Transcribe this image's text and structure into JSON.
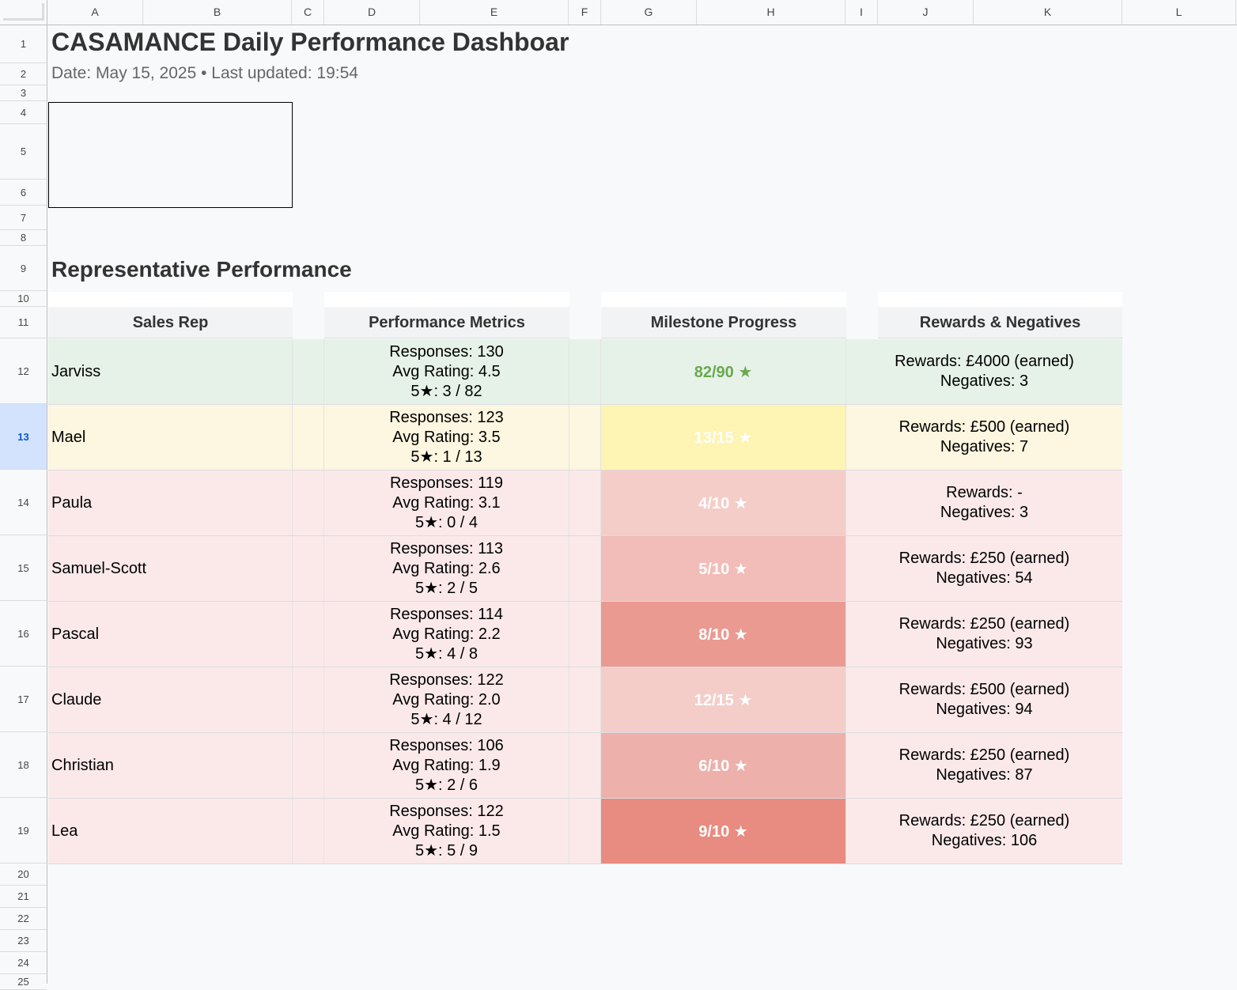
{
  "columns": [
    "A",
    "B",
    "C",
    "D",
    "E",
    "F",
    "G",
    "H",
    "I",
    "J",
    "K",
    "L"
  ],
  "rows": [
    "1",
    "2",
    "3",
    "4",
    "5",
    "6",
    "7",
    "8",
    "9",
    "10",
    "11",
    "12",
    "13",
    "14",
    "15",
    "16",
    "17",
    "18",
    "19",
    "20",
    "21",
    "22",
    "23",
    "24",
    "25"
  ],
  "selected_row": "13",
  "dashboard": {
    "title": "CASAMANCE Daily Performance Dashboar",
    "subtitle": "Date: May 15, 2025 • Last updated: 19:54",
    "section_title": "Representative Performance"
  },
  "table": {
    "headers": {
      "sales_rep": "Sales Rep",
      "metrics": "Performance Metrics",
      "milestone": "Milestone Progress",
      "rewards": "Rewards & Negatives"
    },
    "reps": [
      {
        "name": "Jarviss",
        "responses": "Responses: 130",
        "avg": "Avg Rating: 4.5",
        "five": "5★: 3 / 82",
        "milestone": "82/90 ★",
        "rewards": "Rewards: £4000 (earned)",
        "negatives": "Negatives: 3",
        "row_bg": "#e6f2e8",
        "mile_bg": "#e6f2e8",
        "mile_fg": "#6aa84f"
      },
      {
        "name": "Mael",
        "responses": "Responses: 123",
        "avg": "Avg Rating: 3.5",
        "five": "5★: 1 / 13",
        "milestone": "13/15 ★",
        "rewards": "Rewards: £500 (earned)",
        "negatives": "Negatives: 7",
        "row_bg": "#fdf6e0",
        "mile_bg": "#fef4b3",
        "mile_fg": "#ffffff"
      },
      {
        "name": "Paula",
        "responses": "Responses: 119",
        "avg": "Avg Rating: 3.1",
        "five": "5★: 0 / 4",
        "milestone": "4/10 ★",
        "rewards": "Rewards: -",
        "negatives": "Negatives: 3",
        "row_bg": "#fbe9ea",
        "mile_bg": "#f4cdc9",
        "mile_fg": "#ffffff"
      },
      {
        "name": "Samuel-Scott",
        "responses": "Responses: 113",
        "avg": "Avg Rating: 2.6",
        "five": "5★: 2 / 5",
        "milestone": "5/10 ★",
        "rewards": "Rewards: £250 (earned)",
        "negatives": "Negatives: 54",
        "row_bg": "#fbe9ea",
        "mile_bg": "#f2bcb8",
        "mile_fg": "#ffffff"
      },
      {
        "name": "Pascal",
        "responses": "Responses: 114",
        "avg": "Avg Rating: 2.2",
        "five": "5★: 4 / 8",
        "milestone": "8/10 ★",
        "rewards": "Rewards: £250 (earned)",
        "negatives": "Negatives: 93",
        "row_bg": "#fbe9ea",
        "mile_bg": "#ea9a91",
        "mile_fg": "#ffffff"
      },
      {
        "name": "Claude",
        "responses": "Responses: 122",
        "avg": "Avg Rating: 2.0",
        "five": "5★: 4 / 12",
        "milestone": "12/15 ★",
        "rewards": "Rewards: £500 (earned)",
        "negatives": "Negatives: 94",
        "row_bg": "#fbe9ea",
        "mile_bg": "#f4cdc9",
        "mile_fg": "#ffffff"
      },
      {
        "name": "Christian",
        "responses": "Responses: 106",
        "avg": "Avg Rating: 1.9",
        "five": "5★: 2 / 6",
        "milestone": "6/10 ★",
        "rewards": "Rewards: £250 (earned)",
        "negatives": "Negatives: 87",
        "row_bg": "#fbe9ea",
        "mile_bg": "#edb0aa",
        "mile_fg": "#ffffff"
      },
      {
        "name": "Lea",
        "responses": "Responses: 122",
        "avg": "Avg Rating: 1.5",
        "five": "5★: 5 / 9",
        "milestone": "9/10 ★",
        "rewards": "Rewards: £250 (earned)",
        "negatives": "Negatives: 106",
        "row_bg": "#fbe9ea",
        "mile_bg": "#e88b80",
        "mile_fg": "#ffffff"
      }
    ]
  }
}
